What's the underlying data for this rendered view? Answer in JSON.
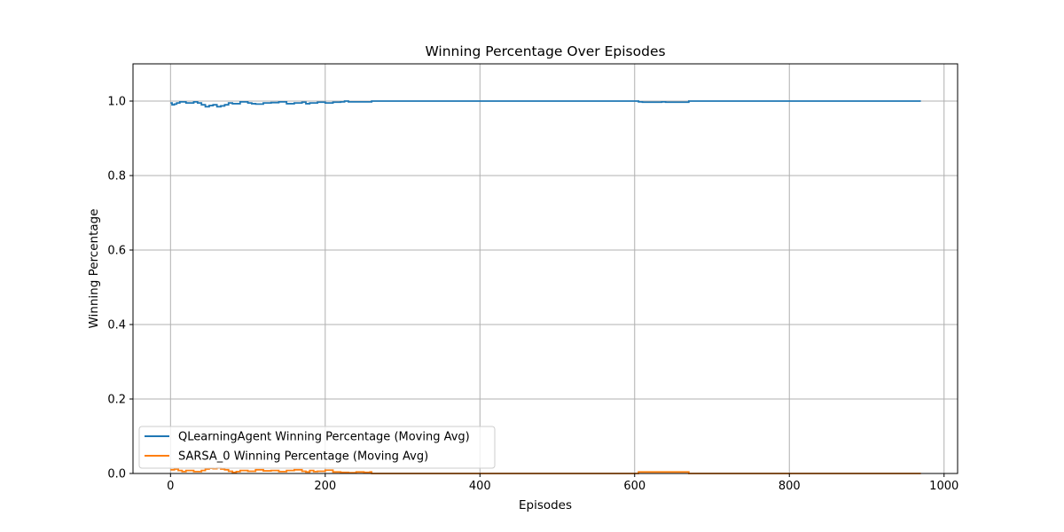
{
  "chart_data": {
    "type": "line",
    "title": "Winning Percentage Over Episodes",
    "xlabel": "Episodes",
    "ylabel": "Winning Percentage",
    "xlim": [
      -48.5,
      1017.5
    ],
    "ylim": [
      0.0,
      1.1
    ],
    "xticks": [
      0,
      200,
      400,
      600,
      800,
      1000
    ],
    "xtick_labels": [
      "0",
      "200",
      "400",
      "600",
      "800",
      "1000"
    ],
    "yticks": [
      0.0,
      0.2,
      0.4,
      0.6,
      0.8,
      1.0
    ],
    "ytick_labels": [
      "0.0",
      "0.2",
      "0.4",
      "0.6",
      "0.8",
      "1.0"
    ],
    "grid": true,
    "legend_position": "lower-left",
    "series": [
      {
        "name": "QLearningAgent Winning Percentage (Moving Avg)",
        "color": "#1f77b4",
        "x": [
          0,
          2,
          5,
          8,
          12,
          20,
          30,
          35,
          40,
          45,
          50,
          55,
          60,
          65,
          70,
          75,
          80,
          90,
          100,
          105,
          110,
          120,
          130,
          140,
          150,
          160,
          170,
          175,
          180,
          190,
          200,
          210,
          220,
          225,
          230,
          240,
          250,
          260,
          300,
          400,
          500,
          600,
          605,
          610,
          620,
          630,
          635,
          640,
          650,
          660,
          670,
          700,
          800,
          900,
          970
        ],
        "y": [
          0.995,
          0.99,
          0.992,
          0.995,
          0.998,
          0.995,
          0.998,
          0.995,
          0.99,
          0.985,
          0.988,
          0.99,
          0.985,
          0.987,
          0.99,
          0.995,
          0.993,
          0.998,
          0.995,
          0.993,
          0.992,
          0.995,
          0.996,
          0.998,
          0.993,
          0.995,
          0.997,
          0.993,
          0.995,
          0.997,
          0.995,
          0.997,
          0.998,
          1.0,
          0.998,
          0.998,
          0.998,
          1.0,
          1.0,
          1.0,
          1.0,
          1.0,
          0.998,
          0.997,
          0.997,
          0.997,
          0.998,
          0.997,
          0.997,
          0.997,
          1.0,
          1.0,
          1.0,
          1.0,
          1.0
        ]
      },
      {
        "name": "SARSA_0 Winning Percentage (Moving Avg)",
        "color": "#ff7f0e",
        "x": [
          0,
          5,
          10,
          15,
          20,
          30,
          40,
          45,
          50,
          55,
          60,
          65,
          70,
          75,
          80,
          85,
          90,
          100,
          110,
          120,
          130,
          140,
          150,
          160,
          170,
          175,
          180,
          185,
          190,
          200,
          210,
          220,
          230,
          240,
          250,
          258,
          260,
          300,
          400,
          500,
          600,
          605,
          620,
          640,
          660,
          670,
          700,
          800,
          900,
          970
        ],
        "y": [
          0.01,
          0.012,
          0.008,
          0.005,
          0.008,
          0.005,
          0.008,
          0.012,
          0.014,
          0.013,
          0.015,
          0.012,
          0.01,
          0.006,
          0.003,
          0.005,
          0.008,
          0.006,
          0.01,
          0.007,
          0.008,
          0.005,
          0.008,
          0.01,
          0.006,
          0.004,
          0.008,
          0.005,
          0.006,
          0.009,
          0.004,
          0.003,
          0.002,
          0.004,
          0.003,
          0.004,
          0.0,
          0.0,
          0.0,
          0.0,
          0.0,
          0.004,
          0.004,
          0.004,
          0.004,
          0.0,
          0.0,
          0.0,
          0.0,
          0.0
        ]
      }
    ]
  }
}
